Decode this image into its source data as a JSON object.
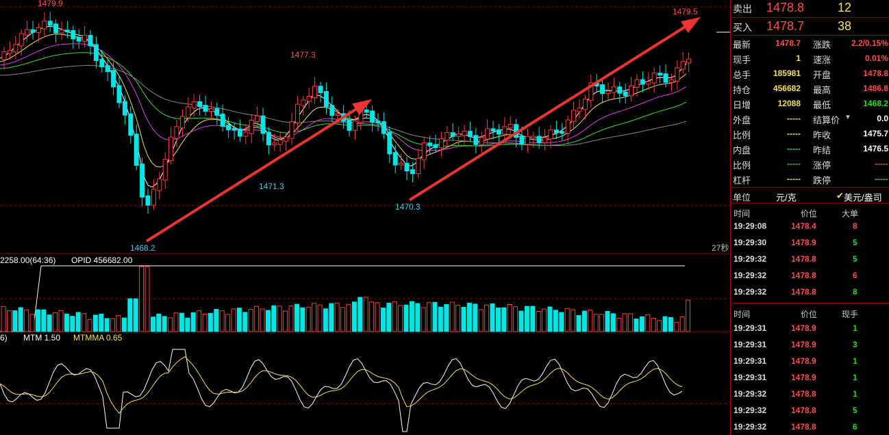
{
  "colors": {
    "background": "#000000",
    "up": "#ff3b3b",
    "down": "#00e5e5",
    "ma1": "#ffffff",
    "ma2": "#f2e15a",
    "ma3": "#e040e0",
    "ma4": "#33dd33",
    "ma5": "#888888",
    "grid": "#8a0000",
    "arrow": "#ee3333"
  },
  "main_chart": {
    "labels": {
      "high_left": "1479.9",
      "high_right": "1479.5",
      "mid_high": "1477.3",
      "low_1": "1468.2",
      "low_2": "1471.3",
      "low_3": "1470.3",
      "countdown": "27秒"
    }
  },
  "volume_panel": {
    "header_left": "2258.00(64:36)",
    "header_opid": "OPID 456682.00"
  },
  "mtm_panel": {
    "header_left": "6)",
    "header_mtm": "MTM 1.50",
    "header_mtmma": "MTMMA 0.65"
  },
  "quote": {
    "sell_label": "卖出",
    "sell_price": "1478.8",
    "sell_qty": "12",
    "buy_label": "买入",
    "buy_price": "1478.7",
    "buy_qty": "38",
    "stats": [
      {
        "l1": "最新",
        "v1": "1478.7",
        "c1": "red",
        "l2": "涨跌",
        "v2": "2.2/0.15%",
        "c2": "red"
      },
      {
        "l1": "现手",
        "v1": "1",
        "c1": "yellow",
        "l2": "速涨",
        "v2": "0.01%",
        "c2": "red"
      },
      {
        "l1": "总手",
        "v1": "185981",
        "c1": "yellow",
        "l2": "开盘",
        "v2": "1478.8",
        "c2": "red"
      },
      {
        "l1": "持仓",
        "v1": "456682",
        "c1": "yellow",
        "l2": "最高",
        "v2": "1486.8",
        "c2": "red"
      },
      {
        "l1": "日增",
        "v1": "12088",
        "c1": "yellow",
        "l2": "最低",
        "v2": "1468.2",
        "c2": "green"
      },
      {
        "l1": "外盘",
        "v1": "-----",
        "c1": "yellow",
        "l2": "结算价",
        "v2": "0.0",
        "c2": "white"
      },
      {
        "l1": "比例",
        "v1": "-----",
        "c1": "yellow",
        "l2": "昨收",
        "v2": "1475.7",
        "c2": "white"
      },
      {
        "l1": "内盘",
        "v1": "-----",
        "c1": "green",
        "l2": "昨结",
        "v2": "1476.5",
        "c2": "white"
      },
      {
        "l1": "比例",
        "v1": "-----",
        "c1": "green",
        "l2": "涨停",
        "v2": "-----",
        "c2": "red"
      },
      {
        "l1": "杠杆",
        "v1": "-----",
        "c1": "yellow",
        "l2": "跌停",
        "v2": "-----",
        "c2": "green"
      }
    ],
    "unit_label": "单位",
    "unit_value": "元/克",
    "unit_alt": "美元/盎司"
  },
  "big_orders": {
    "headers": [
      "时间",
      "价位",
      "大单"
    ],
    "rows": [
      {
        "time": "19:29:08",
        "price": "1478.4",
        "qty": "8",
        "qc": "red"
      },
      {
        "time": "19:29:30",
        "price": "1478.9",
        "qty": "5",
        "qc": "green"
      },
      {
        "time": "19:29:32",
        "price": "1478.8",
        "qty": "5",
        "qc": "green"
      },
      {
        "time": "19:29:32",
        "price": "1478.8",
        "qty": "6",
        "qc": "red"
      },
      {
        "time": "19:29:32",
        "price": "1478.8",
        "qty": "8",
        "qc": "green"
      }
    ]
  },
  "ticks": {
    "headers": [
      "时间",
      "价位",
      "现手"
    ],
    "rows": [
      {
        "time": "19:29:31",
        "price": "1478.9",
        "qty": "1",
        "qc": "green"
      },
      {
        "time": "19:29:31",
        "price": "1478.9",
        "qty": "3",
        "qc": "green"
      },
      {
        "time": "19:29:31",
        "price": "1478.9",
        "qty": "1",
        "qc": "green"
      },
      {
        "time": "19:29:31",
        "price": "1478.9",
        "qty": "1",
        "qc": "green"
      },
      {
        "time": "19:29:32",
        "price": "1478.8",
        "qty": "1",
        "qc": "green"
      },
      {
        "time": "19:29:32",
        "price": "1478.8",
        "qty": "5",
        "qc": "green"
      },
      {
        "time": "19:29:32",
        "price": "1478.8",
        "qty": "6",
        "qc": "green"
      }
    ]
  }
}
